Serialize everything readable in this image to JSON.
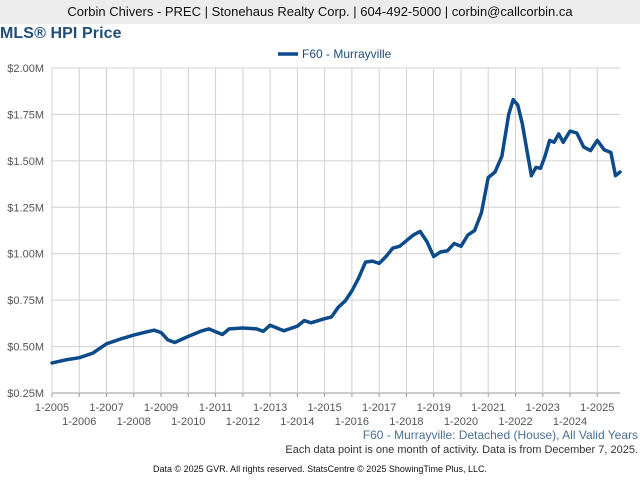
{
  "header": {
    "text": "Corbin Chivers - PREC | Stonehaus Realty Corp. | 604-492-5000 | corbin@callcorbin.ca"
  },
  "footer": {
    "series_caption": "F60 - Murrayville: Detached (House), All Valid Years",
    "note": "Each data point is one month of activity. Data is from December 7, 2025.",
    "copyright": "Data © 2025 GVR. All rights reserved. StatsCentre © 2025 ShowingTime Plus, LLC."
  },
  "colors": {
    "series": "#0d4a8a",
    "title": "#1f4e79",
    "grid": "#d0d0d0",
    "header_bg": "#ececec"
  },
  "chart_data": {
    "type": "line",
    "title": "MLS® HPI Price",
    "xlabel": "",
    "ylabel": "",
    "legend_position": "top-center",
    "grid": true,
    "ylim": [
      250000,
      2000000
    ],
    "xlim": [
      "2005-01",
      "2025-11"
    ],
    "y_ticks": [
      {
        "value": 2000000,
        "label": "$2.00M"
      },
      {
        "value": 1750000,
        "label": "$1.75M"
      },
      {
        "value": 1500000,
        "label": "$1.50M"
      },
      {
        "value": 1250000,
        "label": "$1.25M"
      },
      {
        "value": 1000000,
        "label": "$1.00M"
      },
      {
        "value": 750000,
        "label": "$0.75M"
      },
      {
        "value": 500000,
        "label": "$0.50M"
      },
      {
        "value": 250000,
        "label": "$0.25M"
      }
    ],
    "x_ticks_top": [
      "1-2005",
      "1-2007",
      "1-2009",
      "1-2011",
      "1-2013",
      "1-2015",
      "1-2017",
      "1-2019",
      "1-2021",
      "1-2023",
      "1-2025"
    ],
    "x_ticks_bottom": [
      "1-2006",
      "1-2008",
      "1-2010",
      "1-2012",
      "1-2014",
      "1-2016",
      "1-2018",
      "1-2020",
      "1-2022",
      "1-2024"
    ],
    "series": [
      {
        "name": "F60 - Murrayville",
        "points": [
          [
            "2005-01",
            412000
          ],
          [
            "2005-07",
            428000
          ],
          [
            "2006-01",
            440000
          ],
          [
            "2006-07",
            465000
          ],
          [
            "2007-01",
            515000
          ],
          [
            "2007-07",
            540000
          ],
          [
            "2008-01",
            562000
          ],
          [
            "2008-07",
            580000
          ],
          [
            "2008-10",
            588000
          ],
          [
            "2009-01",
            575000
          ],
          [
            "2009-04",
            536000
          ],
          [
            "2009-07",
            522000
          ],
          [
            "2010-01",
            555000
          ],
          [
            "2010-07",
            585000
          ],
          [
            "2010-10",
            595000
          ],
          [
            "2011-01",
            580000
          ],
          [
            "2011-04",
            565000
          ],
          [
            "2011-07",
            595000
          ],
          [
            "2012-01",
            600000
          ],
          [
            "2012-07",
            595000
          ],
          [
            "2012-10",
            582000
          ],
          [
            "2013-01",
            615000
          ],
          [
            "2013-07",
            585000
          ],
          [
            "2014-01",
            610000
          ],
          [
            "2014-04",
            640000
          ],
          [
            "2014-07",
            628000
          ],
          [
            "2015-01",
            650000
          ],
          [
            "2015-04",
            660000
          ],
          [
            "2015-07",
            712000
          ],
          [
            "2015-10",
            745000
          ],
          [
            "2016-01",
            800000
          ],
          [
            "2016-04",
            870000
          ],
          [
            "2016-07",
            955000
          ],
          [
            "2016-10",
            960000
          ],
          [
            "2017-01",
            948000
          ],
          [
            "2017-04",
            985000
          ],
          [
            "2017-07",
            1030000
          ],
          [
            "2017-10",
            1040000
          ],
          [
            "2018-01",
            1070000
          ],
          [
            "2018-04",
            1100000
          ],
          [
            "2018-07",
            1120000
          ],
          [
            "2018-10",
            1065000
          ],
          [
            "2019-01",
            985000
          ],
          [
            "2019-04",
            1010000
          ],
          [
            "2019-07",
            1015000
          ],
          [
            "2019-10",
            1055000
          ],
          [
            "2020-01",
            1040000
          ],
          [
            "2020-04",
            1100000
          ],
          [
            "2020-07",
            1125000
          ],
          [
            "2020-10",
            1220000
          ],
          [
            "2021-01",
            1410000
          ],
          [
            "2021-04",
            1440000
          ],
          [
            "2021-07",
            1525000
          ],
          [
            "2021-10",
            1750000
          ],
          [
            "2021-12",
            1830000
          ],
          [
            "2022-02",
            1800000
          ],
          [
            "2022-04",
            1700000
          ],
          [
            "2022-06",
            1560000
          ],
          [
            "2022-08",
            1420000
          ],
          [
            "2022-10",
            1465000
          ],
          [
            "2022-12",
            1460000
          ],
          [
            "2023-02",
            1525000
          ],
          [
            "2023-04",
            1610000
          ],
          [
            "2023-06",
            1600000
          ],
          [
            "2023-08",
            1645000
          ],
          [
            "2023-10",
            1600000
          ],
          [
            "2024-01",
            1660000
          ],
          [
            "2024-04",
            1650000
          ],
          [
            "2024-07",
            1575000
          ],
          [
            "2024-10",
            1555000
          ],
          [
            "2025-01",
            1610000
          ],
          [
            "2025-04",
            1560000
          ],
          [
            "2025-07",
            1545000
          ],
          [
            "2025-09",
            1420000
          ],
          [
            "2025-11",
            1440000
          ]
        ]
      }
    ]
  }
}
